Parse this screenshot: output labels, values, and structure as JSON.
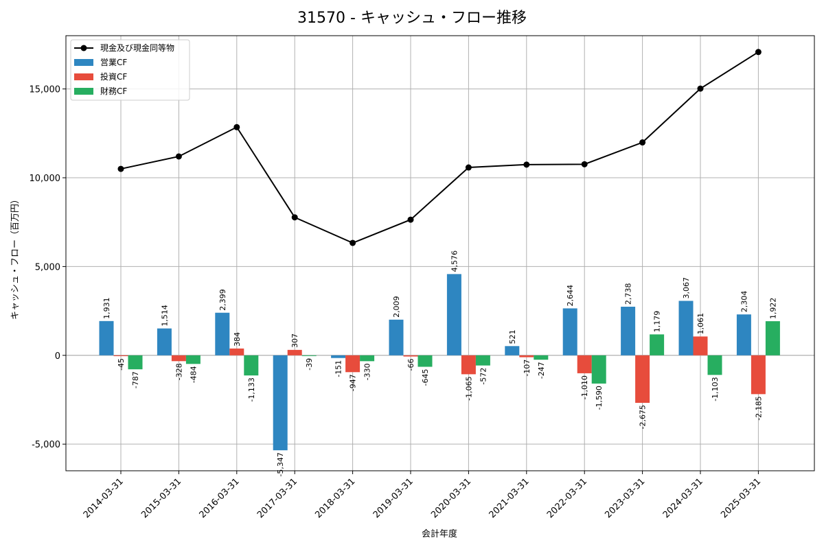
{
  "chart_data": {
    "type": "bar",
    "title": "31570 - キャッシュ・フロー推移",
    "xlabel": "会計年度",
    "ylabel": "キャッシュ・フロー（百万円）",
    "categories": [
      "2014-03-31",
      "2015-03-31",
      "2016-03-31",
      "2017-03-31",
      "2018-03-31",
      "2019-03-31",
      "2020-03-31",
      "2021-03-31",
      "2022-03-31",
      "2023-03-31",
      "2024-03-31",
      "2025-03-31"
    ],
    "ylim": [
      -6500,
      18000
    ],
    "yticks": [
      -5000,
      0,
      5000,
      10000,
      15000
    ],
    "ytick_labels": [
      "-5,000",
      "0",
      "5,000",
      "10,000",
      "15,000"
    ],
    "grid": true,
    "legend_position": "top-left",
    "series": [
      {
        "name": "営業CF",
        "type": "bar",
        "color": "#2e86c1",
        "values": [
          1931,
          1514,
          2399,
          -5347,
          -151,
          2009,
          4576,
          521,
          2644,
          2738,
          3067,
          2304
        ],
        "labels": [
          "1,931",
          "1,514",
          "2,399",
          "-5,347",
          "-151",
          "2,009",
          "4,576",
          "521",
          "2,644",
          "2,738",
          "3,067",
          "2,304"
        ]
      },
      {
        "name": "投資CF",
        "type": "bar",
        "color": "#e74c3c",
        "values": [
          -45,
          -328,
          384,
          307,
          -947,
          -66,
          -1065,
          -107,
          -1010,
          -2675,
          1061,
          -2185
        ],
        "labels": [
          "-45",
          "-328",
          "384",
          "307",
          "-947",
          "-66",
          "-1,065",
          "-107",
          "-1,010",
          "-2,675",
          "1,061",
          "-2,185"
        ]
      },
      {
        "name": "財務CF",
        "type": "bar",
        "color": "#27ae60",
        "values": [
          -787,
          -484,
          -1133,
          -39,
          -330,
          -645,
          -572,
          -247,
          -1590,
          1179,
          -1103,
          1922
        ],
        "labels": [
          "-787",
          "-484",
          "-1,133",
          "-39",
          "-330",
          "-645",
          "-572",
          "-247",
          "-1,590",
          "1,179",
          "-1,103",
          "1,922"
        ]
      },
      {
        "name": "現金及び現金同等物",
        "type": "line",
        "color": "#000000",
        "values": [
          10500,
          11200,
          12850,
          7770,
          6330,
          7640,
          10580,
          10740,
          10760,
          11990,
          15020,
          17080
        ]
      }
    ]
  }
}
